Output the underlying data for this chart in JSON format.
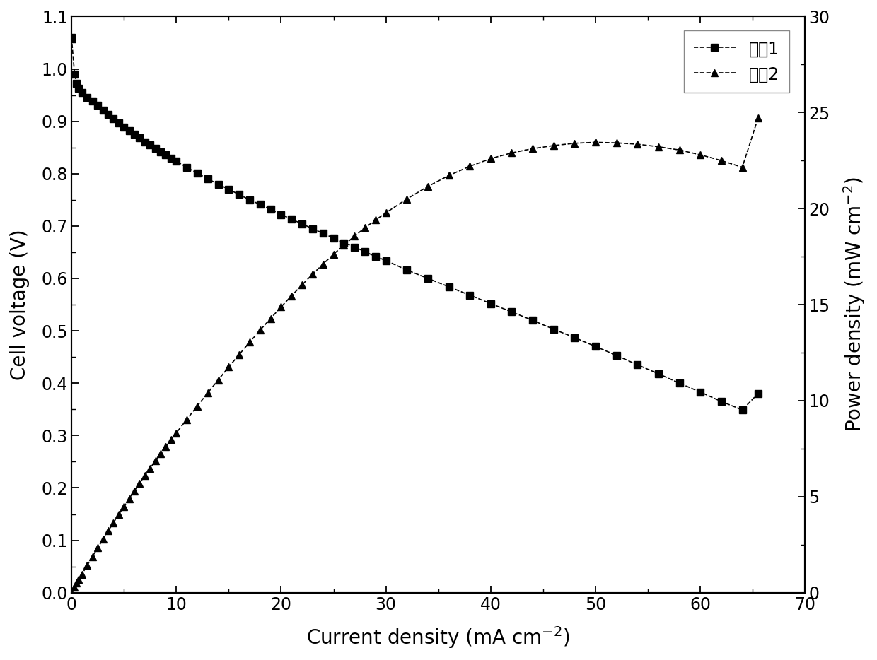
{
  "curve1_x": [
    0.0,
    0.3,
    0.5,
    0.7,
    1.0,
    1.5,
    2.0,
    2.5,
    3.0,
    3.5,
    4.0,
    4.5,
    5.0,
    5.5,
    6.0,
    6.5,
    7.0,
    7.5,
    8.0,
    8.5,
    9.0,
    9.5,
    10.0,
    11.0,
    12.0,
    13.0,
    14.0,
    15.0,
    16.0,
    17.0,
    18.0,
    19.0,
    20.0,
    21.0,
    22.0,
    23.0,
    24.0,
    25.0,
    26.0,
    27.0,
    28.0,
    29.0,
    30.0,
    32.0,
    34.0,
    36.0,
    38.0,
    40.0,
    42.0,
    44.0,
    46.0,
    48.0,
    50.0,
    52.0,
    54.0,
    56.0,
    58.0,
    60.0,
    62.0,
    64.0,
    65.5
  ],
  "curve1_y": [
    1.06,
    0.99,
    0.972,
    0.963,
    0.955,
    0.946,
    0.938,
    0.93,
    0.921,
    0.913,
    0.905,
    0.897,
    0.889,
    0.882,
    0.875,
    0.868,
    0.861,
    0.855,
    0.848,
    0.842,
    0.836,
    0.83,
    0.824,
    0.812,
    0.801,
    0.79,
    0.78,
    0.77,
    0.76,
    0.75,
    0.741,
    0.732,
    0.722,
    0.713,
    0.704,
    0.695,
    0.686,
    0.677,
    0.668,
    0.66,
    0.651,
    0.642,
    0.634,
    0.616,
    0.6,
    0.584,
    0.568,
    0.552,
    0.536,
    0.52,
    0.503,
    0.487,
    0.47,
    0.453,
    0.435,
    0.418,
    0.4,
    0.383,
    0.365,
    0.349,
    0.38
  ],
  "curve2_x": [
    0.0,
    0.3,
    0.5,
    0.7,
    1.0,
    1.5,
    2.0,
    2.5,
    3.0,
    3.5,
    4.0,
    4.5,
    5.0,
    5.5,
    6.0,
    6.5,
    7.0,
    7.5,
    8.0,
    8.5,
    9.0,
    9.5,
    10.0,
    11.0,
    12.0,
    13.0,
    14.0,
    15.0,
    16.0,
    17.0,
    18.0,
    19.0,
    20.0,
    21.0,
    22.0,
    23.0,
    24.0,
    25.0,
    26.0,
    27.0,
    28.0,
    29.0,
    30.0,
    32.0,
    34.0,
    36.0,
    38.0,
    40.0,
    42.0,
    44.0,
    46.0,
    48.0,
    50.0,
    52.0,
    54.0,
    56.0,
    58.0,
    60.0,
    62.0,
    64.0,
    65.5
  ],
  "curve2_y": [
    0.0,
    0.3,
    0.5,
    0.7,
    0.96,
    1.42,
    1.88,
    2.33,
    2.77,
    3.21,
    3.64,
    4.06,
    4.48,
    4.9,
    5.3,
    5.7,
    6.1,
    6.48,
    6.86,
    7.24,
    7.6,
    7.96,
    8.32,
    9.02,
    9.72,
    10.4,
    11.08,
    11.75,
    12.4,
    13.04,
    13.67,
    14.28,
    14.88,
    15.46,
    16.03,
    16.58,
    17.11,
    17.62,
    18.1,
    18.56,
    19.0,
    19.4,
    19.78,
    20.5,
    21.15,
    21.72,
    22.2,
    22.6,
    22.9,
    23.12,
    23.28,
    23.4,
    23.45,
    23.42,
    23.35,
    23.22,
    23.05,
    22.8,
    22.5,
    22.15,
    24.7
  ],
  "xlabel": "Current density (mA cm$^{-2}$)",
  "ylabel_left": "Cell voltage (V)",
  "ylabel_right": "Power density (mW cm$^{-2}$)",
  "legend_label1": "曲线1",
  "legend_label2": "曲线2",
  "xlim": [
    0,
    70
  ],
  "ylim_left": [
    0.0,
    1.1
  ],
  "ylim_right": [
    0,
    30
  ],
  "color": "#000000",
  "background_color": "#ffffff",
  "fontsize_labels": 20,
  "fontsize_ticks": 17,
  "fontsize_legend": 17,
  "marker_size": 7,
  "line_width": 1.2
}
